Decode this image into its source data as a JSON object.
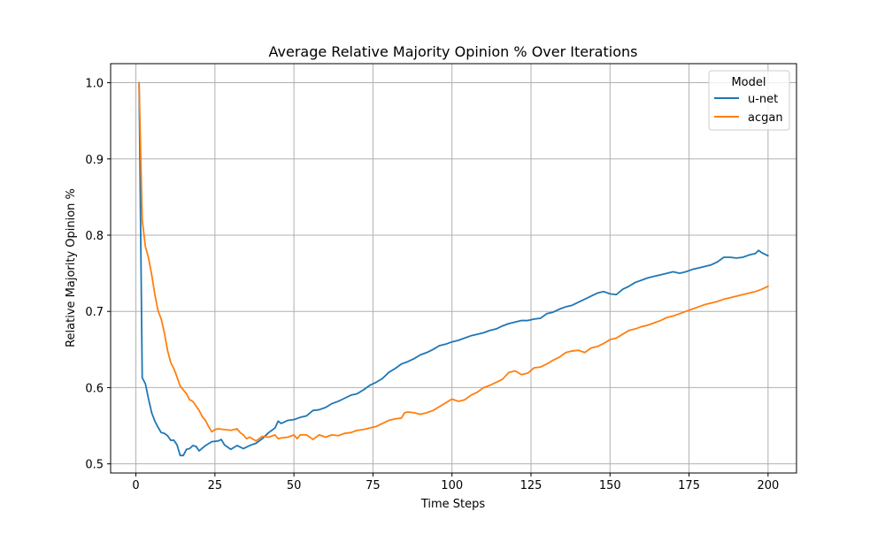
{
  "chart_data": {
    "type": "line",
    "title": "Average Relative Majority Opinion % Over Iterations",
    "xlabel": "Time Steps",
    "ylabel": "Relative Majority Opinion %",
    "xlim": [
      -8,
      209
    ],
    "ylim": [
      0.488,
      1.025
    ],
    "xticks": [
      0,
      25,
      50,
      75,
      100,
      125,
      150,
      175,
      200
    ],
    "yticks": [
      0.5,
      0.6,
      0.7,
      0.8,
      0.9,
      1.0
    ],
    "xtick_labels": [
      "0",
      "25",
      "50",
      "75",
      "100",
      "125",
      "150",
      "175",
      "200"
    ],
    "ytick_labels": [
      "0.5",
      "0.6",
      "0.7",
      "0.8",
      "0.9",
      "1.0"
    ],
    "grid": true,
    "legend": {
      "title": "Model",
      "placement": "top-right"
    },
    "series": [
      {
        "name": "u-net",
        "color": "#1f77b4",
        "points": [
          [
            1,
            1.0
          ],
          [
            2,
            0.613
          ],
          [
            3,
            0.605
          ],
          [
            4,
            0.585
          ],
          [
            5,
            0.567
          ],
          [
            6,
            0.556
          ],
          [
            7,
            0.548
          ],
          [
            8,
            0.541
          ],
          [
            9,
            0.54
          ],
          [
            10,
            0.537
          ],
          [
            11,
            0.531
          ],
          [
            12,
            0.531
          ],
          [
            13,
            0.525
          ],
          [
            14,
            0.511
          ],
          [
            15,
            0.511
          ],
          [
            16,
            0.519
          ],
          [
            17,
            0.52
          ],
          [
            18,
            0.524
          ],
          [
            19,
            0.523
          ],
          [
            20,
            0.517
          ],
          [
            22,
            0.524
          ],
          [
            24,
            0.529
          ],
          [
            26,
            0.53
          ],
          [
            27,
            0.532
          ],
          [
            28,
            0.525
          ],
          [
            30,
            0.519
          ],
          [
            32,
            0.524
          ],
          [
            34,
            0.52
          ],
          [
            36,
            0.524
          ],
          [
            38,
            0.527
          ],
          [
            40,
            0.533
          ],
          [
            42,
            0.541
          ],
          [
            44,
            0.547
          ],
          [
            45,
            0.556
          ],
          [
            46,
            0.553
          ],
          [
            48,
            0.557
          ],
          [
            50,
            0.558
          ],
          [
            52,
            0.561
          ],
          [
            54,
            0.563
          ],
          [
            56,
            0.57
          ],
          [
            58,
            0.571
          ],
          [
            60,
            0.574
          ],
          [
            62,
            0.579
          ],
          [
            64,
            0.582
          ],
          [
            66,
            0.586
          ],
          [
            68,
            0.59
          ],
          [
            70,
            0.592
          ],
          [
            72,
            0.597
          ],
          [
            74,
            0.603
          ],
          [
            76,
            0.607
          ],
          [
            78,
            0.612
          ],
          [
            80,
            0.62
          ],
          [
            82,
            0.625
          ],
          [
            84,
            0.631
          ],
          [
            86,
            0.634
          ],
          [
            88,
            0.638
          ],
          [
            90,
            0.643
          ],
          [
            92,
            0.646
          ],
          [
            94,
            0.65
          ],
          [
            96,
            0.655
          ],
          [
            98,
            0.657
          ],
          [
            100,
            0.66
          ],
          [
            102,
            0.662
          ],
          [
            104,
            0.665
          ],
          [
            106,
            0.668
          ],
          [
            108,
            0.67
          ],
          [
            110,
            0.672
          ],
          [
            112,
            0.675
          ],
          [
            114,
            0.677
          ],
          [
            116,
            0.681
          ],
          [
            118,
            0.684
          ],
          [
            120,
            0.686
          ],
          [
            122,
            0.688
          ],
          [
            124,
            0.688
          ],
          [
            126,
            0.69
          ],
          [
            128,
            0.691
          ],
          [
            130,
            0.697
          ],
          [
            132,
            0.699
          ],
          [
            134,
            0.703
          ],
          [
            136,
            0.706
          ],
          [
            138,
            0.708
          ],
          [
            140,
            0.712
          ],
          [
            142,
            0.716
          ],
          [
            144,
            0.72
          ],
          [
            146,
            0.724
          ],
          [
            148,
            0.726
          ],
          [
            150,
            0.723
          ],
          [
            152,
            0.722
          ],
          [
            154,
            0.729
          ],
          [
            156,
            0.733
          ],
          [
            158,
            0.738
          ],
          [
            160,
            0.741
          ],
          [
            162,
            0.744
          ],
          [
            164,
            0.746
          ],
          [
            166,
            0.748
          ],
          [
            168,
            0.75
          ],
          [
            170,
            0.752
          ],
          [
            172,
            0.75
          ],
          [
            174,
            0.752
          ],
          [
            176,
            0.755
          ],
          [
            178,
            0.757
          ],
          [
            180,
            0.759
          ],
          [
            182,
            0.761
          ],
          [
            184,
            0.765
          ],
          [
            186,
            0.771
          ],
          [
            188,
            0.771
          ],
          [
            190,
            0.77
          ],
          [
            192,
            0.771
          ],
          [
            194,
            0.774
          ],
          [
            196,
            0.776
          ],
          [
            197,
            0.78
          ],
          [
            198,
            0.777
          ],
          [
            200,
            0.773
          ]
        ]
      },
      {
        "name": "acgan",
        "color": "#ff7f0e",
        "points": [
          [
            1,
            1.0
          ],
          [
            2,
            0.82
          ],
          [
            3,
            0.785
          ],
          [
            4,
            0.77
          ],
          [
            5,
            0.748
          ],
          [
            6,
            0.722
          ],
          [
            7,
            0.701
          ],
          [
            8,
            0.69
          ],
          [
            9,
            0.672
          ],
          [
            10,
            0.649
          ],
          [
            11,
            0.633
          ],
          [
            12,
            0.625
          ],
          [
            13,
            0.614
          ],
          [
            14,
            0.602
          ],
          [
            15,
            0.597
          ],
          [
            16,
            0.592
          ],
          [
            17,
            0.584
          ],
          [
            18,
            0.582
          ],
          [
            19,
            0.576
          ],
          [
            20,
            0.57
          ],
          [
            21,
            0.562
          ],
          [
            22,
            0.557
          ],
          [
            23,
            0.549
          ],
          [
            24,
            0.542
          ],
          [
            25,
            0.545
          ],
          [
            26,
            0.546
          ],
          [
            28,
            0.545
          ],
          [
            30,
            0.544
          ],
          [
            32,
            0.546
          ],
          [
            33,
            0.541
          ],
          [
            34,
            0.538
          ],
          [
            35,
            0.533
          ],
          [
            36,
            0.535
          ],
          [
            38,
            0.53
          ],
          [
            40,
            0.536
          ],
          [
            42,
            0.535
          ],
          [
            44,
            0.538
          ],
          [
            45,
            0.533
          ],
          [
            46,
            0.534
          ],
          [
            48,
            0.535
          ],
          [
            50,
            0.538
          ],
          [
            51,
            0.533
          ],
          [
            52,
            0.538
          ],
          [
            54,
            0.538
          ],
          [
            56,
            0.532
          ],
          [
            58,
            0.538
          ],
          [
            60,
            0.535
          ],
          [
            62,
            0.538
          ],
          [
            64,
            0.537
          ],
          [
            66,
            0.54
          ],
          [
            68,
            0.541
          ],
          [
            70,
            0.544
          ],
          [
            72,
            0.545
          ],
          [
            74,
            0.547
          ],
          [
            76,
            0.549
          ],
          [
            78,
            0.553
          ],
          [
            80,
            0.557
          ],
          [
            82,
            0.559
          ],
          [
            84,
            0.56
          ],
          [
            85,
            0.567
          ],
          [
            86,
            0.568
          ],
          [
            88,
            0.567
          ],
          [
            90,
            0.565
          ],
          [
            92,
            0.567
          ],
          [
            94,
            0.57
          ],
          [
            96,
            0.575
          ],
          [
            98,
            0.58
          ],
          [
            100,
            0.585
          ],
          [
            102,
            0.582
          ],
          [
            104,
            0.584
          ],
          [
            106,
            0.59
          ],
          [
            108,
            0.594
          ],
          [
            110,
            0.6
          ],
          [
            112,
            0.603
          ],
          [
            114,
            0.607
          ],
          [
            116,
            0.611
          ],
          [
            118,
            0.62
          ],
          [
            120,
            0.622
          ],
          [
            122,
            0.617
          ],
          [
            124,
            0.619
          ],
          [
            126,
            0.626
          ],
          [
            128,
            0.627
          ],
          [
            130,
            0.631
          ],
          [
            132,
            0.636
          ],
          [
            134,
            0.64
          ],
          [
            136,
            0.646
          ],
          [
            138,
            0.648
          ],
          [
            140,
            0.649
          ],
          [
            142,
            0.646
          ],
          [
            144,
            0.652
          ],
          [
            146,
            0.654
          ],
          [
            148,
            0.658
          ],
          [
            150,
            0.663
          ],
          [
            152,
            0.665
          ],
          [
            154,
            0.67
          ],
          [
            156,
            0.675
          ],
          [
            158,
            0.677
          ],
          [
            160,
            0.68
          ],
          [
            162,
            0.682
          ],
          [
            164,
            0.685
          ],
          [
            166,
            0.688
          ],
          [
            168,
            0.692
          ],
          [
            170,
            0.694
          ],
          [
            172,
            0.697
          ],
          [
            174,
            0.7
          ],
          [
            176,
            0.703
          ],
          [
            178,
            0.706
          ],
          [
            180,
            0.709
          ],
          [
            182,
            0.711
          ],
          [
            184,
            0.713
          ],
          [
            186,
            0.716
          ],
          [
            188,
            0.718
          ],
          [
            190,
            0.72
          ],
          [
            192,
            0.722
          ],
          [
            194,
            0.724
          ],
          [
            196,
            0.726
          ],
          [
            198,
            0.729
          ],
          [
            200,
            0.733
          ]
        ]
      }
    ]
  }
}
